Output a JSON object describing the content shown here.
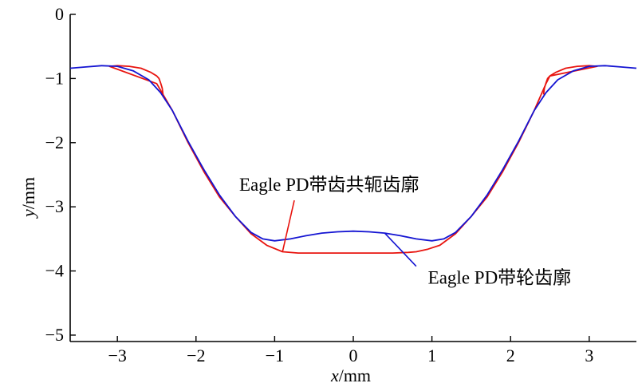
{
  "chart_data": {
    "type": "line",
    "xlabel": {
      "var": "x",
      "unit": "/mm"
    },
    "ylabel": {
      "var": "y",
      "unit": "/mm"
    },
    "xlim": [
      -3.6,
      3.6
    ],
    "ylim": [
      -5.1,
      0
    ],
    "xticks": [
      -3,
      -2,
      -1,
      0,
      1,
      2,
      3
    ],
    "yticks": [
      0,
      -1,
      -2,
      -3,
      -4,
      -5
    ],
    "xtick_labels": [
      "−3",
      "−2",
      "−1",
      "0",
      "1",
      "2",
      "3"
    ],
    "ytick_labels": [
      "0",
      "−1",
      "−2",
      "−3",
      "−4",
      "−5"
    ],
    "grid": false,
    "series": [
      {
        "name": "Eagle PD带齿共轭齿廓",
        "color": "#e8140f",
        "x": [
          -2.42,
          -2.43,
          -2.45,
          -2.47,
          -2.5,
          -2.58,
          -2.7,
          -2.85,
          -3.0,
          -3.1,
          -2.5,
          -2.3,
          -2.1,
          -1.9,
          -1.7,
          -1.5,
          -1.3,
          -1.1,
          -0.9,
          -0.7,
          -0.5,
          -0.3,
          0.0,
          0.3,
          0.5,
          0.7,
          0.8,
          0.95,
          1.1,
          1.3,
          1.5,
          1.7,
          1.9,
          2.1,
          2.3,
          2.45,
          2.5,
          3.1,
          3.0,
          2.85,
          2.7,
          2.58,
          2.5,
          2.47,
          2.45,
          2.43,
          2.42
        ],
        "y": [
          -1.25,
          -1.15,
          -1.07,
          -1.0,
          -0.96,
          -0.9,
          -0.84,
          -0.81,
          -0.8,
          -0.81,
          -1.08,
          -1.5,
          -2.0,
          -2.45,
          -2.85,
          -3.15,
          -3.42,
          -3.6,
          -3.7,
          -3.72,
          -3.72,
          -3.72,
          -3.72,
          -3.72,
          -3.72,
          -3.71,
          -3.7,
          -3.66,
          -3.6,
          -3.42,
          -3.15,
          -2.85,
          -2.45,
          -2.0,
          -1.5,
          -1.08,
          -0.96,
          -0.81,
          -0.8,
          -0.81,
          -0.84,
          -0.9,
          -0.96,
          -1.0,
          -1.07,
          -1.15,
          -1.25
        ]
      },
      {
        "name": "Eagle PD带轮齿廓",
        "color": "#1414d2",
        "x": [
          -3.6,
          -3.4,
          -3.2,
          -3.0,
          -2.8,
          -2.6,
          -2.45,
          -2.3,
          -2.1,
          -1.9,
          -1.7,
          -1.5,
          -1.3,
          -1.15,
          -1.0,
          -0.8,
          -0.6,
          -0.4,
          -0.2,
          0.0,
          0.2,
          0.4,
          0.6,
          0.8,
          1.0,
          1.15,
          1.3,
          1.5,
          1.7,
          1.9,
          2.1,
          2.3,
          2.45,
          2.6,
          2.8,
          3.0,
          3.2,
          3.4,
          3.6
        ],
        "y": [
          -0.84,
          -0.82,
          -0.8,
          -0.81,
          -0.88,
          -1.02,
          -1.22,
          -1.5,
          -1.98,
          -2.42,
          -2.82,
          -3.15,
          -3.4,
          -3.5,
          -3.53,
          -3.5,
          -3.45,
          -3.41,
          -3.39,
          -3.38,
          -3.39,
          -3.41,
          -3.45,
          -3.5,
          -3.53,
          -3.5,
          -3.4,
          -3.15,
          -2.82,
          -2.42,
          -1.98,
          -1.5,
          -1.22,
          -1.02,
          -0.88,
          -0.81,
          -0.8,
          -0.82,
          -0.84
        ]
      }
    ],
    "annotations": [
      {
        "text": "Eagle PD带齿共轭齿廓",
        "series": 0,
        "point": [
          -0.9,
          -3.7
        ],
        "text_at": [
          -1.45,
          -2.75
        ]
      },
      {
        "text": "Eagle PD带轮齿廓",
        "series": 1,
        "point": [
          0.4,
          -3.41
        ],
        "text_at": [
          0.95,
          -4.2
        ]
      }
    ]
  }
}
